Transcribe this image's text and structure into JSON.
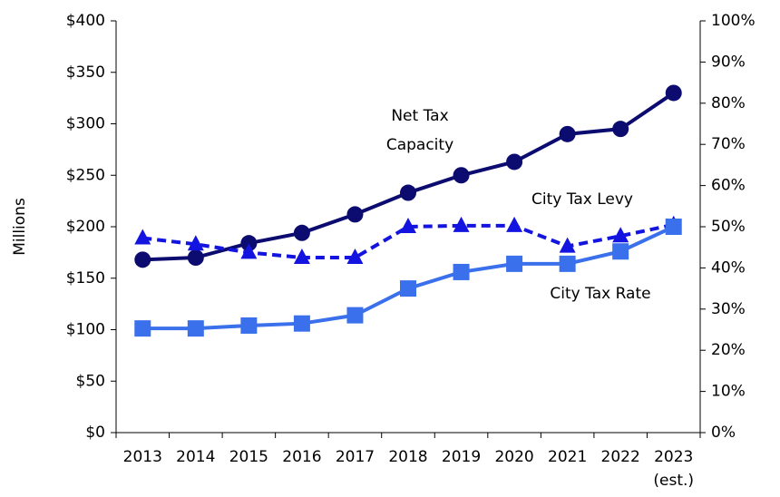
{
  "chart_data": {
    "type": "line",
    "y_label": "Millions",
    "categories": [
      "2013",
      "2014",
      "2015",
      "2016",
      "2017",
      "2018",
      "2019",
      "2020",
      "2021",
      "2022",
      "2023 (est.)"
    ],
    "series": [
      {
        "name": "Net Tax Capacity",
        "color": "#0c0c70",
        "marker": "circle",
        "dash": false,
        "values": [
          168,
          170,
          184,
          194,
          212,
          233,
          250,
          263,
          290,
          295,
          330
        ]
      },
      {
        "name": "City Tax Levy",
        "color": "#1414e0",
        "marker": "triangle",
        "dash": true,
        "values": [
          189,
          183,
          175,
          170,
          170,
          200,
          201,
          201,
          181,
          191,
          202
        ]
      },
      {
        "name": "City Tax Rate",
        "color": "#3a70ec",
        "marker": "square",
        "dash": false,
        "axis": "y2",
        "values": [
          25.3,
          25.3,
          26,
          26.5,
          28.5,
          35,
          39,
          41,
          41,
          44,
          50
        ]
      }
    ],
    "ylim": [
      0,
      400
    ],
    "yticks": [
      {
        "value": 0,
        "label": "$0"
      },
      {
        "value": 50,
        "label": "$50"
      },
      {
        "value": 100,
        "label": "$100"
      },
      {
        "value": 150,
        "label": "$150"
      },
      {
        "value": 200,
        "label": "$200"
      },
      {
        "value": 250,
        "label": "$250"
      },
      {
        "value": 300,
        "label": "$300"
      },
      {
        "value": 350,
        "label": "$350"
      },
      {
        "value": 400,
        "label": "$400"
      }
    ],
    "y2lim": [
      0,
      100
    ],
    "y2ticks": [
      {
        "value": 0,
        "label": "0%"
      },
      {
        "value": 10,
        "label": "10%"
      },
      {
        "value": 20,
        "label": "20%"
      },
      {
        "value": 30,
        "label": "30%"
      },
      {
        "value": 40,
        "label": "40%"
      },
      {
        "value": 50,
        "label": "50%"
      },
      {
        "value": 60,
        "label": "60%"
      },
      {
        "value": 70,
        "label": "70%"
      },
      {
        "value": 80,
        "label": "80%"
      },
      {
        "value": 90,
        "label": "90%"
      },
      {
        "value": 100,
        "label": "100%"
      }
    ],
    "grid": false
  }
}
